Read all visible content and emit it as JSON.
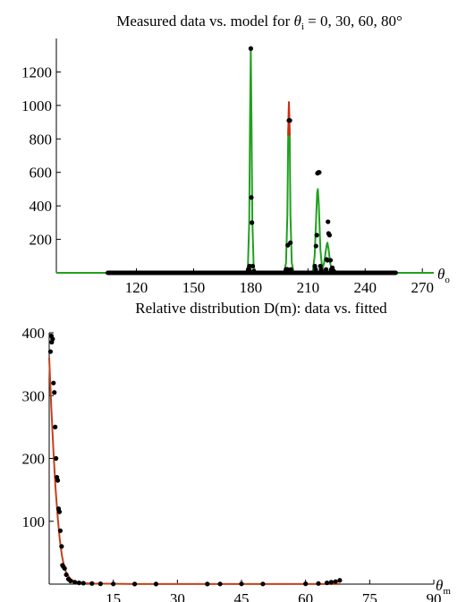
{
  "chart_data": [
    {
      "type": "line",
      "title": "Measured data vs. model for θi = 0, 30, 60, 80°",
      "title_parts": {
        "prefix": "Measured data vs. model for ",
        "var": "θ",
        "sub": "i",
        "suffix": " = 0, 30, 60, 80°"
      },
      "xlabel": {
        "var": "θ",
        "sub": "o"
      },
      "ylabel": "",
      "xlim": [
        78,
        276
      ],
      "ylim": [
        0,
        1400
      ],
      "xticks": [
        120,
        150,
        180,
        210,
        240,
        270
      ],
      "yticks": [
        200,
        400,
        600,
        800,
        1000,
        1200
      ],
      "grid": false,
      "colors": {
        "model_green": "#22a020",
        "model_red": "#d02a10",
        "data": "#000000"
      },
      "series": [
        {
          "role": "model (green)",
          "x": [
            78,
            105,
            176,
            177.5,
            178.5,
            179.2,
            179.6,
            180,
            180.4,
            180.8,
            181.5,
            182.5,
            184,
            196,
            197.5,
            198.5,
            199.2,
            199.6,
            200,
            200.4,
            200.8,
            201.5,
            202.5,
            204,
            211,
            212.5,
            213.5,
            214.3,
            214.8,
            215.2,
            215.7,
            216.5,
            217.5,
            219,
            217.5,
            218.5,
            219.3,
            219.8,
            220.2,
            220.8,
            221.6,
            222.5,
            224,
            276
          ],
          "y": [
            0,
            0,
            0,
            5,
            40,
            320,
            900,
            1340,
            900,
            320,
            40,
            5,
            0,
            0,
            5,
            60,
            350,
            820,
            1000,
            820,
            350,
            60,
            5,
            0,
            0,
            10,
            100,
            330,
            480,
            500,
            400,
            140,
            20,
            0,
            20,
            60,
            130,
            165,
            180,
            140,
            60,
            15,
            0,
            0
          ]
        },
        {
          "role": "model (red)",
          "x": [
            199.6,
            200,
            200.4
          ],
          "y": [
            820,
            1020,
            820
          ]
        },
        {
          "role": "measured data (black dots)",
          "x": [
            180,
            180.3,
            180.6,
            181,
            179.3,
            200,
            200.5,
            199.4,
            199.2,
            200.8,
            201,
            198.8,
            215,
            215.5,
            214.6,
            214.2,
            215.9,
            220.5,
            220.8,
            220.2,
            221.3,
            219.8,
            219.5,
            221.8,
            222.2,
            214,
            213.6,
            216.5,
            216.9,
            199,
            198.5,
            181.5,
            178.7,
            222.8,
            223.5
          ],
          "y": [
            1340,
            450,
            300,
            40,
            40,
            910,
            910,
            165,
            20,
            180,
            20,
            20,
            595,
            600,
            225,
            160,
            600,
            305,
            235,
            75,
            225,
            80,
            20,
            75,
            20,
            20,
            40,
            40,
            20,
            20,
            20,
            10,
            20,
            30,
            10
          ]
        },
        {
          "role": "measured data baseline (x range of dense dots at 0)",
          "x": [
            105,
            256
          ],
          "y": [
            0,
            0
          ]
        }
      ]
    },
    {
      "type": "line",
      "title": "Relative distribution D(m): data vs. fitted",
      "xlabel": {
        "var": "θ",
        "sub": "m"
      },
      "ylabel": "",
      "xlim": [
        0,
        90
      ],
      "ylim": [
        0,
        400
      ],
      "xticks": [
        15,
        30,
        45,
        60,
        75,
        90
      ],
      "yticks": [
        100,
        200,
        300,
        400
      ],
      "grid": false,
      "colors": {
        "fitted": "#c8401a",
        "data": "#000000"
      },
      "series": [
        {
          "role": "fitted (red-brown)",
          "x": [
            0,
            0.5,
            1,
            1.5,
            2,
            2.5,
            3,
            3.5,
            4,
            5,
            6,
            8,
            10,
            20,
            40,
            60,
            68
          ],
          "y": [
            360,
            280,
            210,
            150,
            105,
            70,
            45,
            28,
            18,
            8,
            4,
            1.5,
            0.8,
            0.2,
            0.1,
            0.1,
            0.1
          ]
        },
        {
          "role": "data (black dots)",
          "x": [
            0.3,
            0.5,
            0.6,
            0.8,
            1,
            1.2,
            1.4,
            1.6,
            1.8,
            2,
            2.2,
            2.4,
            2.6,
            2.9,
            3.1,
            3.3,
            3.6,
            4,
            4.5,
            5,
            6,
            7,
            8,
            10,
            12,
            15,
            20,
            25,
            37,
            40,
            45,
            50,
            60,
            63,
            65,
            66,
            67,
            68
          ],
          "y": [
            370,
            395,
            385,
            390,
            320,
            305,
            250,
            200,
            170,
            165,
            120,
            115,
            85,
            60,
            30,
            28,
            25,
            15,
            8,
            5,
            3,
            2,
            1.5,
            1,
            0.5,
            0.3,
            0.2,
            0.2,
            0.2,
            0.3,
            0.4,
            0.3,
            0.5,
            1,
            2,
            3,
            4,
            6
          ]
        }
      ]
    }
  ]
}
